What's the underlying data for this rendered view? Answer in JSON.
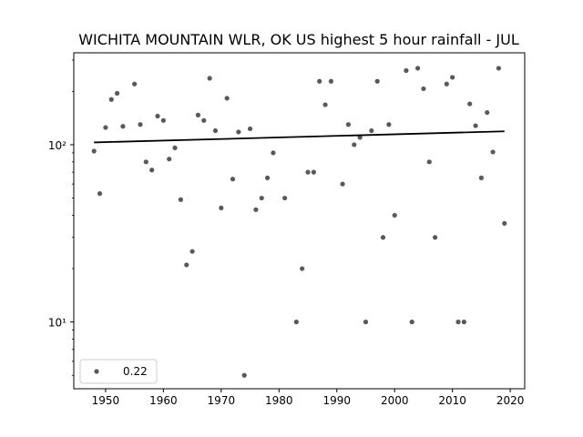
{
  "chart_data": {
    "type": "scatter",
    "title": "WICHITA MOUNTAIN WLR, OK US highest 5 hour rainfall - JUL",
    "xlabel": "",
    "ylabel": "",
    "xlim": [
      1944.5,
      2022.5
    ],
    "ylim": [
      4.2,
      330
    ],
    "yscale": "log",
    "x_ticks": [
      1950,
      1960,
      1970,
      1980,
      1990,
      2000,
      2010,
      2020
    ],
    "y_ticks": [
      10,
      100
    ],
    "y_tick_labels": [
      "10¹",
      "10²"
    ],
    "grid": false,
    "legend": {
      "position": "lower-left",
      "entries": [
        "0.22"
      ]
    },
    "colors": {
      "points": "#595959",
      "trend": "#000000"
    },
    "series": [
      {
        "name": "0.22",
        "kind": "scatter",
        "x": [
          1948,
          1949,
          1950,
          1951,
          1952,
          1953,
          1955,
          1956,
          1957,
          1958,
          1959,
          1960,
          1961,
          1962,
          1963,
          1964,
          1965,
          1966,
          1967,
          1968,
          1969,
          1970,
          1971,
          1972,
          1973,
          1974,
          1975,
          1976,
          1977,
          1978,
          1979,
          1981,
          1983,
          1984,
          1985,
          1986,
          1987,
          1988,
          1989,
          1991,
          1992,
          1993,
          1994,
          1995,
          1996,
          1997,
          1998,
          1999,
          2000,
          2002,
          2003,
          2004,
          2005,
          2006,
          2007,
          2009,
          2010,
          2011,
          2012,
          2013,
          2014,
          2015,
          2016,
          2017,
          2018,
          2019
        ],
        "y": [
          92,
          53,
          125,
          180,
          195,
          127,
          220,
          130,
          80,
          72,
          145,
          137,
          83,
          96,
          49,
          21,
          25,
          147,
          137,
          237,
          120,
          44,
          183,
          64,
          118,
          5,
          123,
          43,
          50,
          65,
          90,
          50,
          10,
          20,
          70,
          70,
          228,
          168,
          228,
          60,
          130,
          100,
          110,
          10,
          120,
          228,
          30,
          130,
          40,
          262,
          10,
          270,
          207,
          80,
          30,
          220,
          240,
          10,
          10,
          170,
          128,
          65,
          152,
          91,
          270,
          36
        ]
      },
      {
        "name": "trend",
        "kind": "line",
        "x": [
          1948,
          2019
        ],
        "y": [
          103,
          119
        ]
      }
    ]
  }
}
